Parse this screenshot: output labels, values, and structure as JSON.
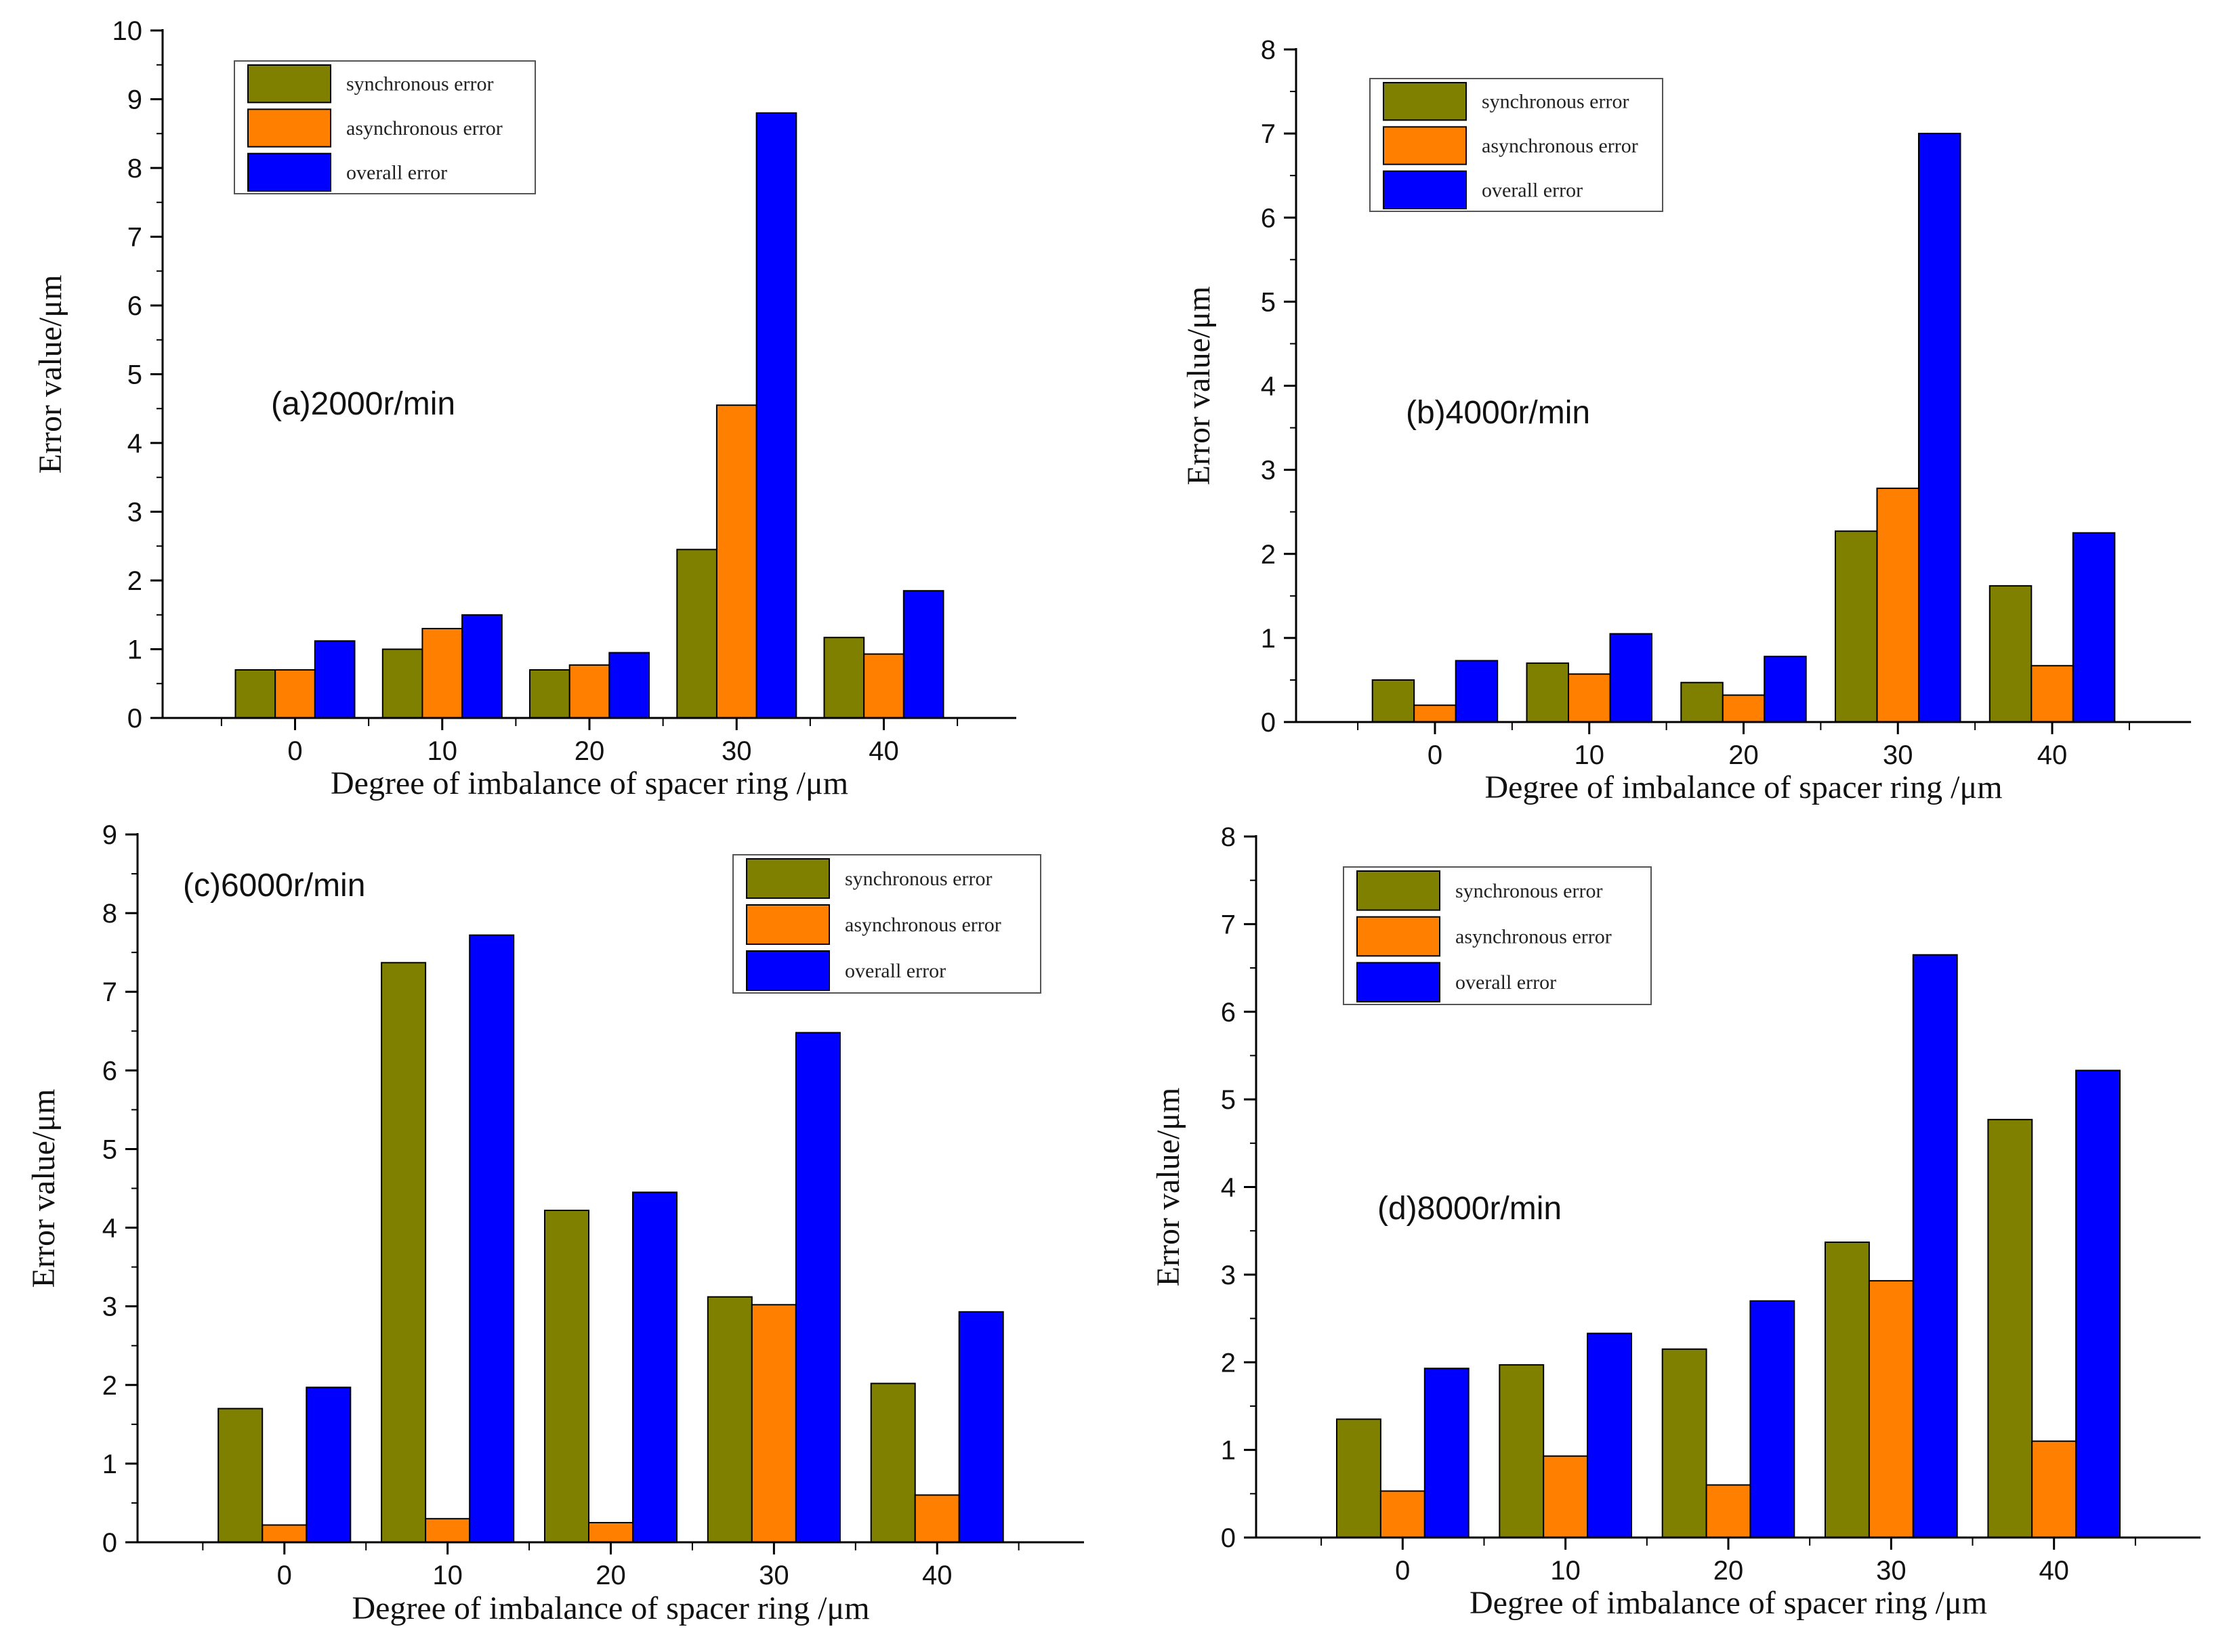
{
  "colors": {
    "synchronous": "#808000",
    "asynchronous": "#FF8000",
    "overall": "#0000FF",
    "axis": "#000000"
  },
  "chart_data": [
    {
      "type": "bar",
      "title": "(a)2000r/min",
      "categories": [
        "0",
        "10",
        "20",
        "30",
        "40"
      ],
      "xlabel": "Degree of imbalance of spacer ring /μm",
      "ylabel": "Error value/μm",
      "ylim": [
        0,
        10
      ],
      "yticks": [
        0,
        1,
        2,
        3,
        4,
        5,
        6,
        7,
        8,
        9,
        10
      ],
      "legend_position": "top-left",
      "series": [
        {
          "name": "synchronous error",
          "values": [
            0.7,
            1.0,
            0.7,
            2.45,
            1.17
          ]
        },
        {
          "name": "asynchronous error",
          "values": [
            0.7,
            1.3,
            0.77,
            4.55,
            0.93
          ]
        },
        {
          "name": "overall error",
          "values": [
            1.12,
            1.5,
            0.95,
            8.8,
            1.85
          ]
        }
      ]
    },
    {
      "type": "bar",
      "title": "(b)4000r/min",
      "categories": [
        "0",
        "10",
        "20",
        "30",
        "40"
      ],
      "xlabel": "Degree of imbalance of spacer ring /μm",
      "ylabel": "Error value/μm",
      "ylim": [
        0,
        8
      ],
      "yticks": [
        0,
        1,
        2,
        3,
        4,
        5,
        6,
        7,
        8
      ],
      "legend_position": "top-left",
      "series": [
        {
          "name": "synchronous error",
          "values": [
            0.5,
            0.7,
            0.47,
            2.27,
            1.62
          ]
        },
        {
          "name": "asynchronous error",
          "values": [
            0.2,
            0.57,
            0.32,
            2.78,
            0.67
          ]
        },
        {
          "name": "overall error",
          "values": [
            0.73,
            1.05,
            0.78,
            7.0,
            2.25
          ]
        }
      ]
    },
    {
      "type": "bar",
      "title": "(c)6000r/min",
      "categories": [
        "0",
        "10",
        "20",
        "30",
        "40"
      ],
      "xlabel": "Degree of imbalance of spacer ring /μm",
      "ylabel": "Error value/μm",
      "ylim": [
        0,
        9
      ],
      "yticks": [
        0,
        1,
        2,
        3,
        4,
        5,
        6,
        7,
        8,
        9
      ],
      "legend_position": "top-right",
      "series": [
        {
          "name": "synchronous error",
          "values": [
            1.7,
            7.37,
            4.22,
            3.12,
            2.02
          ]
        },
        {
          "name": "asynchronous error",
          "values": [
            0.22,
            0.3,
            0.25,
            3.02,
            0.6
          ]
        },
        {
          "name": "overall error",
          "values": [
            1.97,
            7.72,
            4.45,
            6.48,
            2.93
          ]
        }
      ]
    },
    {
      "type": "bar",
      "title": "(d)8000r/min",
      "categories": [
        "0",
        "10",
        "20",
        "30",
        "40"
      ],
      "xlabel": "Degree of imbalance of spacer ring /μm",
      "ylabel": "Error value/μm",
      "ylim": [
        0,
        8
      ],
      "yticks": [
        0,
        1,
        2,
        3,
        4,
        5,
        6,
        7,
        8
      ],
      "legend_position": "top-left",
      "series": [
        {
          "name": "synchronous error",
          "values": [
            1.35,
            1.97,
            2.15,
            3.37,
            4.77
          ]
        },
        {
          "name": "asynchronous error",
          "values": [
            0.53,
            0.93,
            0.6,
            2.93,
            1.1
          ]
        },
        {
          "name": "overall error",
          "values": [
            1.93,
            2.33,
            2.7,
            6.65,
            5.33
          ]
        }
      ]
    }
  ]
}
